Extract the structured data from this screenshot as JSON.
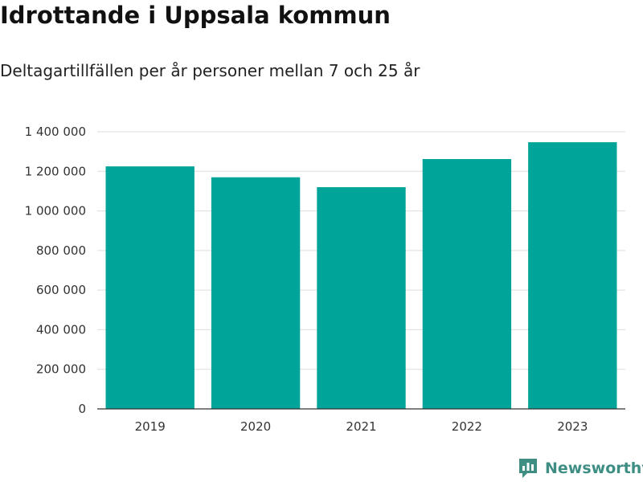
{
  "header": {
    "title": "Idrottande i Uppsala kommun",
    "subtitle": "Deltagartillfällen per år personer mellan 7 och 25 år"
  },
  "colors": {
    "bar": "#00a499",
    "grid": "#dddddd",
    "axis": "#333333",
    "brand": "#3e8e84"
  },
  "brand": {
    "name": "Newsworthy",
    "icon": "newsworthy-logo-icon"
  },
  "chart_data": {
    "type": "bar",
    "title": "Idrottande i Uppsala kommun",
    "subtitle": "Deltagartillfällen per år personer mellan 7 och 25 år",
    "xlabel": "",
    "ylabel": "",
    "categories": [
      "2019",
      "2020",
      "2021",
      "2022",
      "2023"
    ],
    "values": [
      1225000,
      1170000,
      1120000,
      1262000,
      1347000
    ],
    "ylim": [
      0,
      1400000
    ],
    "yticks": [
      0,
      200000,
      400000,
      600000,
      800000,
      1000000,
      1200000,
      1400000
    ],
    "ytick_labels": [
      "0",
      "200 000",
      "400 000",
      "600 000",
      "800 000",
      "1 000 000",
      "1 200 000",
      "1 400 000"
    ],
    "grid": true,
    "legend": "none"
  }
}
